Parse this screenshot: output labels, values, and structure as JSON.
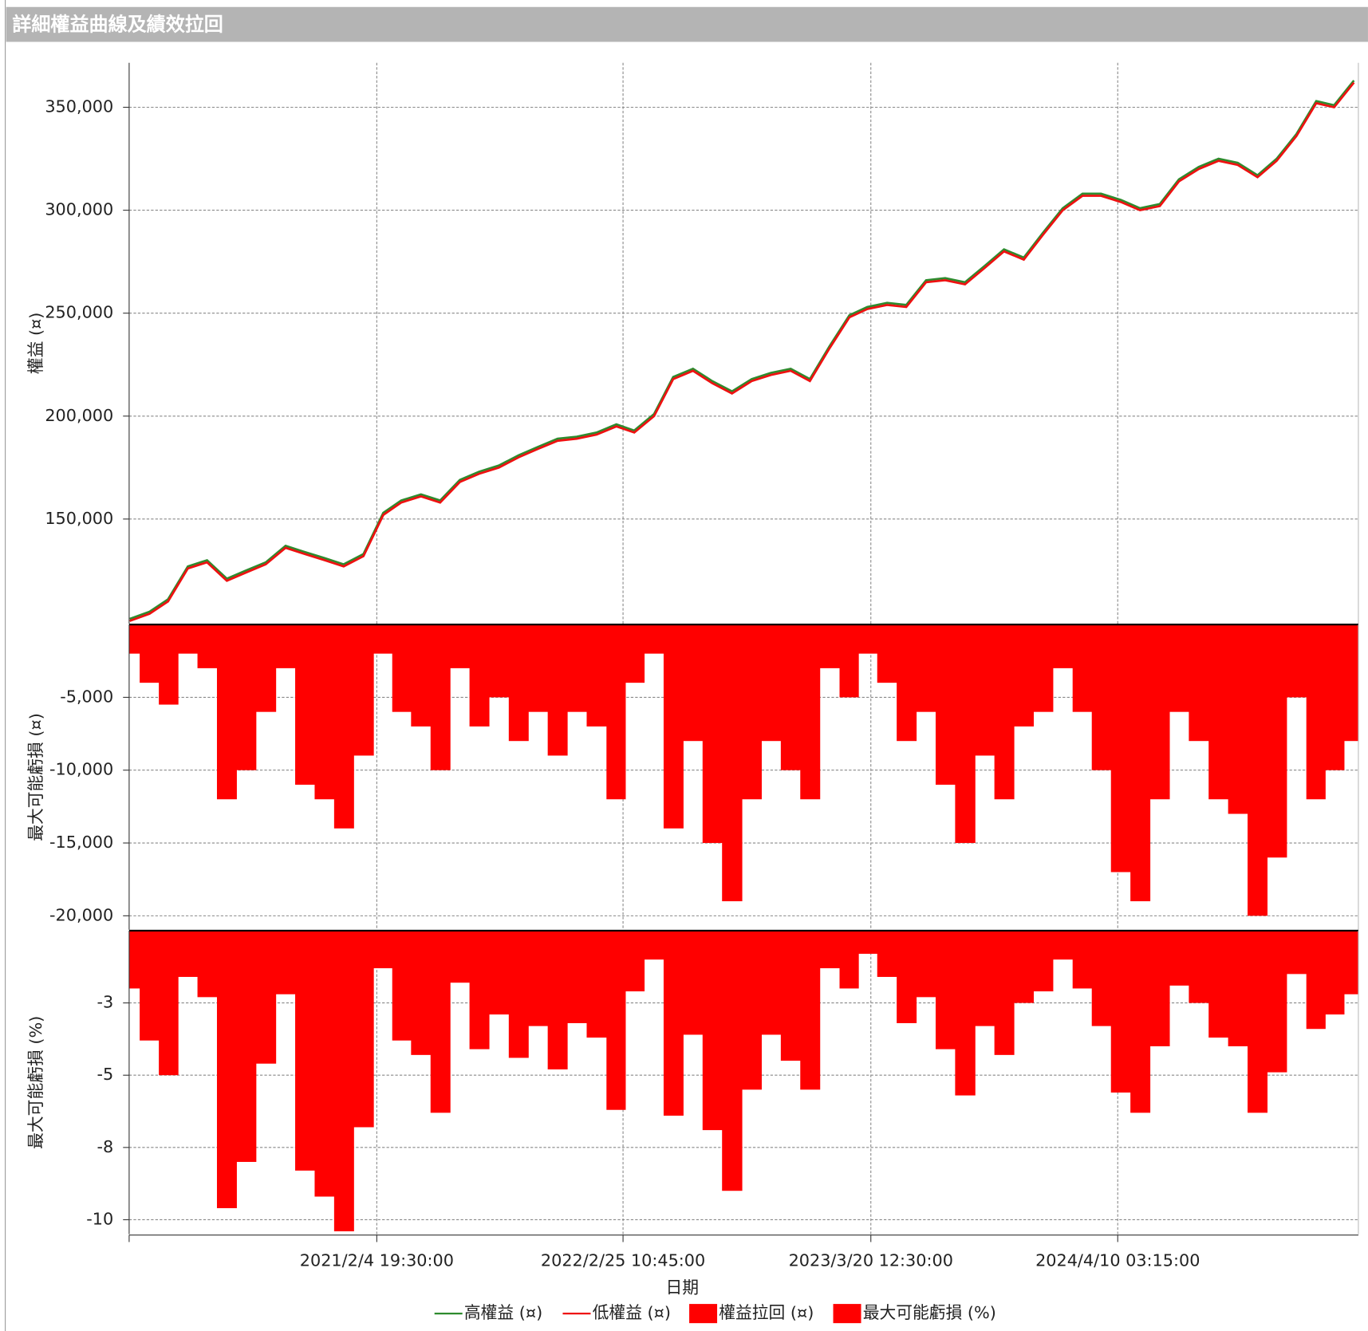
{
  "chart_data": [
    {
      "type": "line",
      "title": "詳細權益曲線及績效拉回",
      "ylabel": "權益 (¤)",
      "xlim": [
        "2020/1/14",
        "2025/4/22"
      ],
      "ylim": [
        99200,
        371600
      ],
      "yticks": [
        {
          "value": 150000,
          "label": "150,000"
        },
        {
          "value": 200000,
          "label": "200,000"
        },
        {
          "value": 250000,
          "label": "250,000"
        },
        {
          "value": 300000,
          "label": "300,000"
        },
        {
          "value": 350000,
          "label": "350,000"
        }
      ],
      "grid": true,
      "x": [
        "2020/1/15",
        "2020/2/15",
        "2020/3/15",
        "2020/4/15",
        "2020/5/15",
        "2020/6/15",
        "2020/7/15",
        "2020/8/15",
        "2020/9/15",
        "2020/10/15",
        "2020/11/15",
        "2020/12/15",
        "2021/1/15",
        "2021/2/15",
        "2021/3/15",
        "2021/4/15",
        "2021/5/15",
        "2021/6/15",
        "2021/7/15",
        "2021/8/15",
        "2021/9/15",
        "2021/10/15",
        "2021/11/15",
        "2021/12/15",
        "2022/1/15",
        "2022/2/15",
        "2022/3/15",
        "2022/4/15",
        "2022/5/15",
        "2022/6/15",
        "2022/7/15",
        "2022/8/15",
        "2022/9/15",
        "2022/10/15",
        "2022/11/15",
        "2022/12/15",
        "2023/1/15",
        "2023/2/15",
        "2023/3/15",
        "2023/4/15",
        "2023/5/15",
        "2023/6/15",
        "2023/7/15",
        "2023/8/15",
        "2023/9/15",
        "2023/10/15",
        "2023/11/15",
        "2023/12/15",
        "2024/1/15",
        "2024/2/15",
        "2024/3/15",
        "2024/4/15",
        "2024/5/15",
        "2024/6/15",
        "2024/7/15",
        "2024/8/15",
        "2024/9/15",
        "2024/10/15",
        "2024/11/15",
        "2024/12/15",
        "2025/1/15",
        "2025/2/15",
        "2025/3/15",
        "2025/4/15"
      ],
      "series": [
        {
          "name": "高權益 (¤)",
          "color": "#2e8b2e",
          "values": [
            101500,
            105000,
            111000,
            127000,
            130000,
            121000,
            125000,
            129000,
            137000,
            134000,
            131000,
            128000,
            133000,
            153000,
            159000,
            162000,
            159000,
            169000,
            173000,
            176000,
            181000,
            185000,
            189000,
            190000,
            192000,
            196000,
            193000,
            201000,
            219000,
            223000,
            217000,
            212000,
            218000,
            221000,
            223000,
            218000,
            234000,
            249000,
            253000,
            255000,
            254000,
            266000,
            267000,
            265000,
            273000,
            281000,
            277000,
            289000,
            301000,
            308000,
            308000,
            305000,
            301000,
            303000,
            315000,
            321000,
            325000,
            323000,
            317000,
            325000,
            337000,
            353000,
            351000,
            363000
          ]
        },
        {
          "name": "低權益 (¤)",
          "color": "#ee1111",
          "values": [
            100500,
            104000,
            110000,
            126000,
            129000,
            120000,
            124000,
            128000,
            136000,
            133000,
            130000,
            127000,
            132000,
            152000,
            158000,
            161000,
            158000,
            168000,
            172000,
            175000,
            180000,
            184000,
            188000,
            189000,
            191000,
            195000,
            192000,
            200000,
            218000,
            222000,
            216000,
            211000,
            217000,
            220000,
            222000,
            217000,
            233000,
            248000,
            252000,
            254000,
            253000,
            265000,
            266000,
            264000,
            272000,
            280000,
            276000,
            288000,
            300000,
            307000,
            307000,
            304000,
            300000,
            302000,
            314000,
            320000,
            324000,
            322000,
            316000,
            324000,
            336000,
            352000,
            350000,
            362000
          ]
        }
      ]
    },
    {
      "type": "area",
      "ylabel": "最大可能虧損 (¤)",
      "xlim": [
        "2020/1/14",
        "2025/4/22"
      ],
      "ylim": [
        -20960,
        0
      ],
      "yticks": [
        {
          "value": -5000,
          "label": "-5,000"
        },
        {
          "value": -10000,
          "label": "-10,000"
        },
        {
          "value": -15000,
          "label": "-15,000"
        },
        {
          "value": -20000,
          "label": "-20,000"
        }
      ],
      "grid": true,
      "x": [
        "2020/1/15",
        "2020/2/15",
        "2020/3/15",
        "2020/4/15",
        "2020/5/15",
        "2020/6/15",
        "2020/7/15",
        "2020/8/15",
        "2020/9/15",
        "2020/10/15",
        "2020/11/15",
        "2020/12/15",
        "2021/1/15",
        "2021/2/15",
        "2021/3/15",
        "2021/4/15",
        "2021/5/15",
        "2021/6/15",
        "2021/7/15",
        "2021/8/15",
        "2021/9/15",
        "2021/10/15",
        "2021/11/15",
        "2021/12/15",
        "2022/1/15",
        "2022/2/15",
        "2022/3/15",
        "2022/4/15",
        "2022/5/15",
        "2022/6/15",
        "2022/7/15",
        "2022/8/15",
        "2022/9/15",
        "2022/10/15",
        "2022/11/15",
        "2022/12/15",
        "2023/1/15",
        "2023/2/15",
        "2023/3/15",
        "2023/4/15",
        "2023/5/15",
        "2023/6/15",
        "2023/7/15",
        "2023/8/15",
        "2023/9/15",
        "2023/10/15",
        "2023/11/15",
        "2023/12/15",
        "2024/1/15",
        "2024/2/15",
        "2024/3/15",
        "2024/4/15",
        "2024/5/15",
        "2024/6/15",
        "2024/7/15",
        "2024/8/15",
        "2024/9/15",
        "2024/10/15",
        "2024/11/15",
        "2024/12/15",
        "2025/1/15",
        "2025/2/15",
        "2025/3/15",
        "2025/4/15"
      ],
      "series": [
        {
          "name": "權益拉回 (¤)",
          "color": "#ff0000",
          "values": [
            -2000,
            -4000,
            -5500,
            -2000,
            -3000,
            -12000,
            -10000,
            -6000,
            -3000,
            -11000,
            -12000,
            -14000,
            -9000,
            -2000,
            -6000,
            -7000,
            -10000,
            -3000,
            -7000,
            -5000,
            -8000,
            -6000,
            -9000,
            -6000,
            -7000,
            -12000,
            -4000,
            -2000,
            -14000,
            -8000,
            -15000,
            -19000,
            -12000,
            -8000,
            -10000,
            -12000,
            -3000,
            -5000,
            -2000,
            -4000,
            -8000,
            -6000,
            -11000,
            -15000,
            -9000,
            -12000,
            -7000,
            -6000,
            -3000,
            -6000,
            -10000,
            -17000,
            -19000,
            -12000,
            -6000,
            -8000,
            -12000,
            -13000,
            -20000,
            -16000,
            -5000,
            -12000,
            -10000,
            -8000
          ]
        }
      ]
    },
    {
      "type": "area",
      "ylabel": "最大可能虧損 (%)",
      "xlabel": "日期",
      "xlim": [
        "2020/1/14",
        "2025/4/22"
      ],
      "ylim": [
        -10.5,
        0
      ],
      "yticks": [
        {
          "value": -2.5,
          "label": "-3"
        },
        -5,
        {
          "value": -7.5,
          "label": "-8"
        },
        -10
      ],
      "xticks": [
        "2021/2/4 19:30:00",
        "2022/2/25 10:45:00",
        "2023/3/20 12:30:00",
        "2024/4/10 03:15:00"
      ],
      "grid": true,
      "x": [
        "2020/1/15",
        "2020/2/15",
        "2020/3/15",
        "2020/4/15",
        "2020/5/15",
        "2020/6/15",
        "2020/7/15",
        "2020/8/15",
        "2020/9/15",
        "2020/10/15",
        "2020/11/15",
        "2020/12/15",
        "2021/1/15",
        "2021/2/15",
        "2021/3/15",
        "2021/4/15",
        "2021/5/15",
        "2021/6/15",
        "2021/7/15",
        "2021/8/15",
        "2021/9/15",
        "2021/10/15",
        "2021/11/15",
        "2021/12/15",
        "2022/1/15",
        "2022/2/15",
        "2022/3/15",
        "2022/4/15",
        "2022/5/15",
        "2022/6/15",
        "2022/7/15",
        "2022/8/15",
        "2022/9/15",
        "2022/10/15",
        "2022/11/15",
        "2022/12/15",
        "2023/1/15",
        "2023/2/15",
        "2023/3/15",
        "2023/4/15",
        "2023/5/15",
        "2023/6/15",
        "2023/7/15",
        "2023/8/15",
        "2023/9/15",
        "2023/10/15",
        "2023/11/15",
        "2023/12/15",
        "2024/1/15",
        "2024/2/15",
        "2024/3/15",
        "2024/4/15",
        "2024/5/15",
        "2024/6/15",
        "2024/7/15",
        "2024/8/15",
        "2024/9/15",
        "2024/10/15",
        "2024/11/15",
        "2024/12/15",
        "2025/1/15",
        "2025/2/15",
        "2025/3/15",
        "2025/4/15"
      ],
      "series": [
        {
          "name": "最大可能虧損 (%)",
          "color": "#ff0000",
          "values": [
            -2,
            -3.8,
            -5,
            -1.6,
            -2.3,
            -9.6,
            -8,
            -4.6,
            -2.2,
            -8.3,
            -9.2,
            -10.4,
            -6.8,
            -1.3,
            -3.8,
            -4.3,
            -6.3,
            -1.8,
            -4.1,
            -2.9,
            -4.4,
            -3.3,
            -4.8,
            -3.2,
            -3.7,
            -6.2,
            -2.1,
            -1,
            -6.4,
            -3.6,
            -6.9,
            -9,
            -5.5,
            -3.6,
            -4.5,
            -5.5,
            -1.3,
            -2,
            -0.8,
            -1.6,
            -3.2,
            -2.3,
            -4.1,
            -5.7,
            -3.3,
            -4.3,
            -2.5,
            -2.1,
            -1,
            -2,
            -3.3,
            -5.6,
            -6.3,
            -4,
            -1.9,
            -2.5,
            -3.7,
            -4,
            -6.3,
            -4.9,
            -1.5,
            -3.4,
            -2.9,
            -2.2
          ]
        }
      ]
    }
  ]
}
